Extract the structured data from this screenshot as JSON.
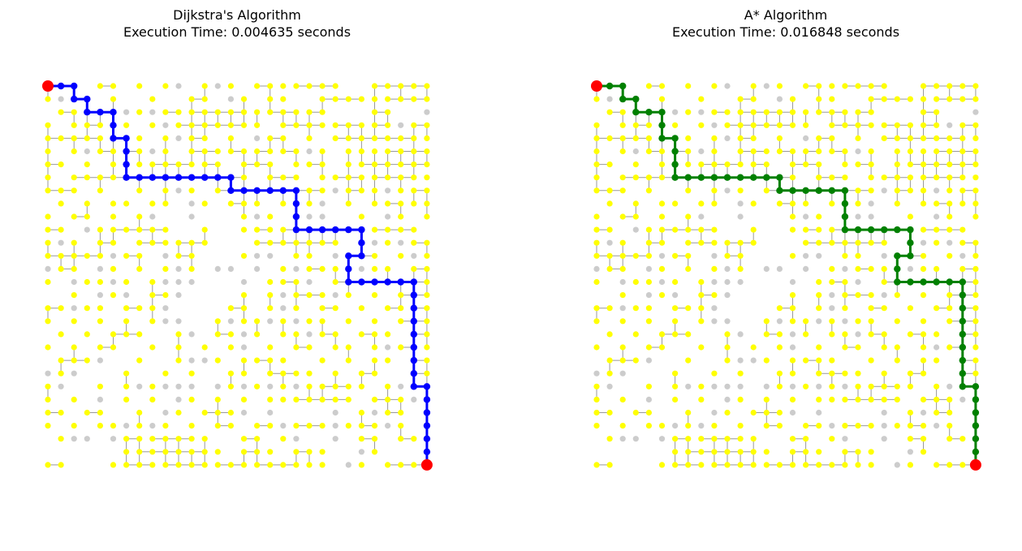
{
  "grid": {
    "rows": 30,
    "cols": 30
  },
  "colors": {
    "background": "#ffffff",
    "node_visited": "#ffff00",
    "node_unvisited": "#cccccc",
    "edge": "#999999",
    "endpoint": "#ff0000",
    "dijkstra_path": "#0000ff",
    "astar_path": "#008000"
  },
  "panels": [
    {
      "id": "dijkstra",
      "title": "Dijkstra's Algorithm",
      "subtitle": "Execution Time: 0.004635 seconds",
      "path_color": "#0000ff"
    },
    {
      "id": "astar",
      "title": "A* Algorithm",
      "subtitle": "Execution Time: 0.016848 seconds",
      "path_color": "#008000"
    }
  ],
  "start": [
    0,
    0
  ],
  "goal": [
    29,
    29
  ],
  "dijkstra_path": [
    [
      0,
      0
    ],
    [
      0,
      1
    ],
    [
      0,
      2
    ],
    [
      1,
      2
    ],
    [
      1,
      3
    ],
    [
      2,
      3
    ],
    [
      2,
      4
    ],
    [
      2,
      5
    ],
    [
      3,
      5
    ],
    [
      4,
      5
    ],
    [
      4,
      6
    ],
    [
      5,
      6
    ],
    [
      6,
      6
    ],
    [
      7,
      6
    ],
    [
      7,
      7
    ],
    [
      7,
      8
    ],
    [
      7,
      9
    ],
    [
      7,
      10
    ],
    [
      7,
      11
    ],
    [
      7,
      12
    ],
    [
      7,
      13
    ],
    [
      7,
      14
    ],
    [
      8,
      14
    ],
    [
      8,
      15
    ],
    [
      8,
      16
    ],
    [
      8,
      17
    ],
    [
      8,
      18
    ],
    [
      8,
      19
    ],
    [
      9,
      19
    ],
    [
      10,
      19
    ],
    [
      11,
      19
    ],
    [
      11,
      20
    ],
    [
      11,
      21
    ],
    [
      11,
      22
    ],
    [
      11,
      23
    ],
    [
      11,
      24
    ],
    [
      12,
      24
    ],
    [
      13,
      24
    ],
    [
      13,
      23
    ],
    [
      14,
      23
    ],
    [
      15,
      23
    ],
    [
      15,
      24
    ],
    [
      15,
      25
    ],
    [
      15,
      26
    ],
    [
      15,
      27
    ],
    [
      15,
      28
    ],
    [
      16,
      28
    ],
    [
      17,
      28
    ],
    [
      18,
      28
    ],
    [
      19,
      28
    ],
    [
      20,
      28
    ],
    [
      21,
      28
    ],
    [
      22,
      28
    ],
    [
      23,
      28
    ],
    [
      23,
      29
    ],
    [
      24,
      29
    ],
    [
      25,
      29
    ],
    [
      26,
      29
    ],
    [
      27,
      29
    ],
    [
      28,
      29
    ],
    [
      29,
      29
    ]
  ],
  "astar_path": [
    [
      0,
      0
    ],
    [
      0,
      1
    ],
    [
      0,
      2
    ],
    [
      1,
      2
    ],
    [
      1,
      3
    ],
    [
      2,
      3
    ],
    [
      2,
      4
    ],
    [
      2,
      5
    ],
    [
      3,
      5
    ],
    [
      4,
      5
    ],
    [
      4,
      6
    ],
    [
      5,
      6
    ],
    [
      6,
      6
    ],
    [
      7,
      6
    ],
    [
      7,
      7
    ],
    [
      7,
      8
    ],
    [
      7,
      9
    ],
    [
      7,
      10
    ],
    [
      7,
      11
    ],
    [
      7,
      12
    ],
    [
      7,
      13
    ],
    [
      7,
      14
    ],
    [
      8,
      14
    ],
    [
      8,
      15
    ],
    [
      8,
      16
    ],
    [
      8,
      17
    ],
    [
      8,
      18
    ],
    [
      8,
      19
    ],
    [
      9,
      19
    ],
    [
      10,
      19
    ],
    [
      11,
      19
    ],
    [
      11,
      20
    ],
    [
      11,
      21
    ],
    [
      11,
      22
    ],
    [
      11,
      23
    ],
    [
      11,
      24
    ],
    [
      12,
      24
    ],
    [
      13,
      24
    ],
    [
      13,
      23
    ],
    [
      14,
      23
    ],
    [
      15,
      23
    ],
    [
      15,
      24
    ],
    [
      15,
      25
    ],
    [
      15,
      26
    ],
    [
      15,
      27
    ],
    [
      15,
      28
    ],
    [
      16,
      28
    ],
    [
      17,
      28
    ],
    [
      18,
      28
    ],
    [
      19,
      28
    ],
    [
      20,
      28
    ],
    [
      21,
      28
    ],
    [
      22,
      28
    ],
    [
      23,
      28
    ],
    [
      23,
      29
    ],
    [
      24,
      29
    ],
    [
      25,
      29
    ],
    [
      26,
      29
    ],
    [
      27,
      29
    ],
    [
      28,
      29
    ],
    [
      29,
      29
    ]
  ],
  "missing_nodes": [
    [
      0,
      3
    ],
    [
      0,
      6
    ],
    [
      0,
      8
    ],
    [
      0,
      10
    ],
    [
      0,
      11
    ],
    [
      0,
      13
    ],
    [
      0,
      15
    ],
    [
      0,
      23
    ],
    [
      0,
      24
    ],
    [
      1,
      1
    ],
    [
      1,
      2
    ],
    [
      1,
      4
    ],
    [
      1,
      6
    ],
    [
      1,
      7
    ],
    [
      1,
      9
    ],
    [
      1,
      10
    ],
    [
      1,
      13
    ],
    [
      1,
      14
    ],
    [
      1,
      16
    ],
    [
      1,
      19
    ],
    [
      1,
      20
    ],
    [
      2,
      0
    ],
    [
      2,
      6
    ],
    [
      2,
      8
    ],
    [
      2,
      22
    ],
    [
      2,
      23
    ],
    [
      2,
      24
    ],
    [
      2,
      27
    ],
    [
      2,
      28
    ],
    [
      2,
      29
    ],
    [
      3,
      1
    ],
    [
      3,
      5
    ],
    [
      3,
      7
    ],
    [
      3,
      9
    ],
    [
      3,
      17
    ],
    [
      3,
      27
    ],
    [
      4,
      6
    ],
    [
      4,
      8
    ],
    [
      4,
      10
    ],
    [
      4,
      13
    ],
    [
      4,
      15
    ],
    [
      4,
      16
    ],
    [
      4,
      19
    ],
    [
      4,
      21
    ],
    [
      5,
      1
    ],
    [
      5,
      3
    ],
    [
      5,
      8
    ],
    [
      5,
      10
    ],
    [
      5,
      20
    ],
    [
      5,
      22
    ],
    [
      6,
      2
    ],
    [
      6,
      4
    ],
    [
      6,
      6
    ],
    [
      6,
      14
    ],
    [
      6,
      18
    ],
    [
      6,
      22
    ],
    [
      7,
      1
    ],
    [
      7,
      11
    ],
    [
      7,
      16
    ],
    [
      7,
      20
    ],
    [
      8,
      3
    ],
    [
      8,
      5
    ],
    [
      8,
      6
    ],
    [
      8,
      8
    ],
    [
      8,
      10
    ],
    [
      8,
      12
    ],
    [
      8,
      22
    ],
    [
      8,
      26
    ],
    [
      9,
      0
    ],
    [
      9,
      2
    ],
    [
      9,
      4
    ],
    [
      9,
      7
    ],
    [
      9,
      10
    ],
    [
      9,
      11
    ],
    [
      9,
      13
    ],
    [
      9,
      17
    ],
    [
      9,
      19
    ],
    [
      9,
      21
    ],
    [
      9,
      22
    ],
    [
      9,
      24
    ],
    [
      10,
      1
    ],
    [
      10,
      4
    ],
    [
      10,
      6
    ],
    [
      10,
      8
    ],
    [
      10,
      9
    ],
    [
      10,
      10
    ],
    [
      10,
      11
    ],
    [
      10,
      12
    ],
    [
      10,
      13
    ],
    [
      10,
      14
    ],
    [
      10,
      16
    ],
    [
      10,
      18
    ],
    [
      10,
      20
    ],
    [
      10,
      21
    ],
    [
      10,
      22
    ],
    [
      10,
      23
    ],
    [
      10,
      25
    ],
    [
      10,
      26
    ],
    [
      10,
      28
    ],
    [
      11,
      2
    ],
    [
      11,
      3
    ],
    [
      11,
      10
    ],
    [
      11,
      11
    ],
    [
      11,
      13
    ],
    [
      11,
      14
    ],
    [
      11,
      29
    ],
    [
      12,
      1
    ],
    [
      12,
      3
    ],
    [
      12,
      6
    ],
    [
      12,
      13
    ],
    [
      12,
      14
    ],
    [
      12,
      15
    ],
    [
      12,
      23
    ],
    [
      12,
      25
    ],
    [
      12,
      27
    ],
    [
      13,
      5
    ],
    [
      13,
      8
    ],
    [
      13,
      9
    ],
    [
      13,
      12
    ],
    [
      13,
      13
    ],
    [
      13,
      14
    ],
    [
      13,
      16
    ],
    [
      13,
      17
    ],
    [
      13,
      18
    ],
    [
      13,
      21
    ],
    [
      13,
      22
    ],
    [
      13,
      23
    ],
    [
      13,
      26
    ],
    [
      13,
      28
    ],
    [
      14,
      0
    ],
    [
      14,
      3
    ],
    [
      14,
      4
    ],
    [
      14,
      6
    ],
    [
      14,
      8
    ],
    [
      14,
      10
    ],
    [
      14,
      12
    ],
    [
      14,
      13
    ],
    [
      14,
      14
    ],
    [
      14,
      15
    ],
    [
      14,
      16
    ],
    [
      14,
      17
    ],
    [
      14,
      19
    ],
    [
      14,
      24
    ],
    [
      14,
      27
    ],
    [
      15,
      1
    ],
    [
      15,
      2
    ],
    [
      15,
      5
    ],
    [
      15,
      7
    ],
    [
      15,
      9
    ],
    [
      15,
      10
    ],
    [
      15,
      11
    ],
    [
      15,
      12
    ],
    [
      15,
      13
    ],
    [
      15,
      14
    ],
    [
      15,
      15
    ],
    [
      15,
      16
    ],
    [
      15,
      20
    ],
    [
      15,
      21
    ],
    [
      15,
      25
    ],
    [
      16,
      0
    ],
    [
      16,
      1
    ],
    [
      16,
      3
    ],
    [
      16,
      4
    ],
    [
      16,
      6
    ],
    [
      16,
      7
    ],
    [
      16,
      10
    ],
    [
      16,
      11
    ],
    [
      16,
      12
    ],
    [
      16,
      13
    ],
    [
      16,
      14
    ],
    [
      16,
      16
    ],
    [
      16,
      18
    ],
    [
      16,
      22
    ],
    [
      16,
      24
    ],
    [
      16,
      26
    ],
    [
      17,
      2
    ],
    [
      17,
      5
    ],
    [
      17,
      9
    ],
    [
      17,
      10
    ],
    [
      17,
      11
    ],
    [
      17,
      12
    ],
    [
      17,
      13
    ],
    [
      17,
      16
    ],
    [
      17,
      18
    ],
    [
      17,
      20
    ],
    [
      17,
      23
    ],
    [
      17,
      25
    ],
    [
      18,
      1
    ],
    [
      18,
      3
    ],
    [
      18,
      5
    ],
    [
      18,
      7
    ],
    [
      18,
      9
    ],
    [
      18,
      10
    ],
    [
      18,
      11
    ],
    [
      18,
      12
    ],
    [
      18,
      14
    ],
    [
      18,
      17
    ],
    [
      18,
      19
    ],
    [
      18,
      22
    ],
    [
      18,
      24
    ],
    [
      18,
      26
    ],
    [
      19,
      0
    ],
    [
      19,
      2
    ],
    [
      19,
      4
    ],
    [
      19,
      8
    ],
    [
      19,
      9
    ],
    [
      19,
      11
    ],
    [
      19,
      12
    ],
    [
      19,
      15
    ],
    [
      19,
      17
    ],
    [
      19,
      20
    ],
    [
      19,
      23
    ],
    [
      19,
      27
    ],
    [
      20,
      1
    ],
    [
      20,
      3
    ],
    [
      20,
      6
    ],
    [
      20,
      7
    ],
    [
      20,
      9
    ],
    [
      20,
      11
    ],
    [
      20,
      13
    ],
    [
      20,
      15
    ],
    [
      20,
      16
    ],
    [
      20,
      18
    ],
    [
      20,
      21
    ],
    [
      20,
      24
    ],
    [
      20,
      26
    ],
    [
      21,
      0
    ],
    [
      21,
      4
    ],
    [
      21,
      5
    ],
    [
      21,
      6
    ],
    [
      21,
      8
    ],
    [
      21,
      9
    ],
    [
      21,
      11
    ],
    [
      21,
      12
    ],
    [
      21,
      14
    ],
    [
      21,
      19
    ],
    [
      21,
      20
    ],
    [
      21,
      22
    ],
    [
      21,
      24
    ],
    [
      21,
      27
    ],
    [
      22,
      0
    ],
    [
      22,
      2
    ],
    [
      22,
      3
    ],
    [
      22,
      4
    ],
    [
      22,
      5
    ],
    [
      22,
      7
    ],
    [
      22,
      8
    ],
    [
      22,
      10
    ],
    [
      22,
      12
    ],
    [
      22,
      13
    ],
    [
      22,
      16
    ],
    [
      22,
      21
    ],
    [
      22,
      23
    ],
    [
      22,
      26
    ],
    [
      22,
      27
    ],
    [
      23,
      1
    ],
    [
      23,
      2
    ],
    [
      23,
      3
    ],
    [
      23,
      5
    ],
    [
      23,
      7
    ],
    [
      23,
      9
    ],
    [
      23,
      10
    ],
    [
      23,
      11
    ],
    [
      23,
      12
    ],
    [
      23,
      13
    ],
    [
      23,
      15
    ],
    [
      23,
      17
    ],
    [
      23,
      19
    ],
    [
      23,
      25
    ],
    [
      23,
      27
    ],
    [
      24,
      1
    ],
    [
      24,
      3
    ],
    [
      24,
      4
    ],
    [
      24,
      5
    ],
    [
      24,
      7
    ],
    [
      24,
      9
    ],
    [
      24,
      10
    ],
    [
      24,
      12
    ],
    [
      24,
      14
    ],
    [
      24,
      16
    ],
    [
      24,
      24
    ],
    [
      24,
      28
    ],
    [
      25,
      2
    ],
    [
      25,
      5
    ],
    [
      25,
      6
    ],
    [
      25,
      8
    ],
    [
      25,
      9
    ],
    [
      25,
      11
    ],
    [
      25,
      15
    ],
    [
      25,
      16
    ],
    [
      25,
      17
    ],
    [
      25,
      18
    ],
    [
      25,
      19
    ],
    [
      25,
      20
    ],
    [
      25,
      21
    ],
    [
      25,
      22
    ],
    [
      25,
      23
    ],
    [
      25,
      25
    ],
    [
      25,
      28
    ],
    [
      26,
      1
    ],
    [
      26,
      3
    ],
    [
      26,
      6
    ],
    [
      26,
      8
    ],
    [
      26,
      10
    ],
    [
      26,
      12
    ],
    [
      26,
      15
    ],
    [
      26,
      18
    ],
    [
      26,
      22
    ],
    [
      26,
      26
    ],
    [
      26,
      28
    ],
    [
      27,
      0
    ],
    [
      27,
      2
    ],
    [
      27,
      3
    ],
    [
      27,
      4
    ],
    [
      27,
      5
    ],
    [
      27,
      13
    ],
    [
      27,
      14
    ],
    [
      27,
      17
    ],
    [
      27,
      19
    ],
    [
      27,
      20
    ],
    [
      27,
      21
    ],
    [
      27,
      22
    ],
    [
      27,
      23
    ],
    [
      27,
      26
    ],
    [
      28,
      0
    ],
    [
      28,
      1
    ],
    [
      28,
      2
    ],
    [
      28,
      3
    ],
    [
      28,
      4
    ],
    [
      28,
      5
    ],
    [
      28,
      14
    ],
    [
      28,
      18
    ],
    [
      28,
      22
    ],
    [
      28,
      23
    ],
    [
      28,
      24
    ],
    [
      28,
      26
    ],
    [
      28,
      27
    ],
    [
      28,
      28
    ],
    [
      29,
      2
    ],
    [
      29,
      3
    ],
    [
      29,
      4
    ],
    [
      29,
      22
    ],
    [
      29,
      23
    ],
    [
      29,
      25
    ]
  ]
}
